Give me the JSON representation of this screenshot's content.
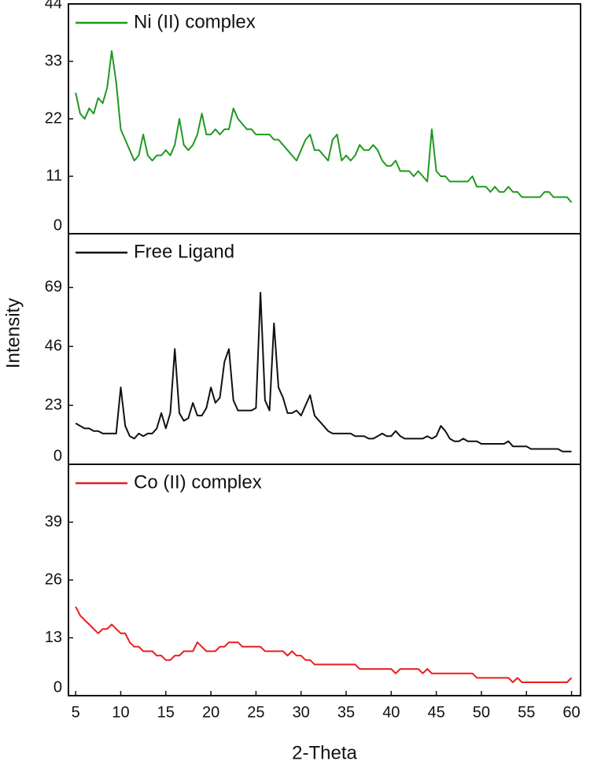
{
  "chart_data": [
    {
      "type": "line",
      "xlim": [
        4.2,
        61
      ],
      "ylim": [
        0,
        44
      ],
      "yticks": [
        0,
        11,
        22,
        33,
        44
      ],
      "x": [
        5,
        5.5,
        6,
        6.5,
        7,
        7.5,
        8,
        8.5,
        9,
        9.5,
        10,
        10.5,
        11,
        11.5,
        12,
        12.5,
        13,
        13.5,
        14,
        14.5,
        15,
        15.5,
        16,
        16.5,
        17,
        17.5,
        18,
        18.5,
        19,
        19.5,
        20,
        20.5,
        21,
        21.5,
        22,
        22.5,
        23,
        23.5,
        24,
        24.5,
        25,
        25.5,
        26,
        26.5,
        27,
        27.5,
        28,
        28.5,
        29,
        29.5,
        30,
        30.5,
        31,
        31.5,
        32,
        32.5,
        33,
        33.5,
        34,
        34.5,
        35,
        35.5,
        36,
        36.5,
        37,
        37.5,
        38,
        38.5,
        39,
        39.5,
        40,
        40.5,
        41,
        41.5,
        42,
        42.5,
        43,
        43.5,
        44,
        44.5,
        45,
        45.5,
        46,
        46.5,
        47,
        47.5,
        48,
        48.5,
        49,
        49.5,
        50,
        50.5,
        51,
        51.5,
        52,
        52.5,
        53,
        53.5,
        54,
        54.5,
        55,
        55.5,
        56,
        56.5,
        57,
        57.5,
        58,
        58.5,
        59,
        59.5,
        60
      ],
      "series": [
        {
          "name": "Ni (II) complex",
          "color": "#1f9a1f",
          "values": [
            27,
            23,
            22,
            24,
            23,
            26,
            25,
            28,
            35,
            29,
            20,
            18,
            16,
            14,
            15,
            19,
            15,
            14,
            15,
            15,
            16,
            15,
            17,
            22,
            17,
            16,
            17,
            19,
            23,
            19,
            19,
            20,
            19,
            20,
            20,
            24,
            22,
            21,
            20,
            20,
            19,
            19,
            19,
            19,
            18,
            18,
            17,
            16,
            15,
            14,
            16,
            18,
            19,
            16,
            16,
            15,
            14,
            18,
            19,
            14,
            15,
            14,
            15,
            17,
            16,
            16,
            17,
            16,
            14,
            13,
            13,
            14,
            12,
            12,
            12,
            11,
            12,
            11,
            10,
            20,
            12,
            11,
            11,
            10,
            10,
            10,
            10,
            10,
            11,
            9,
            9,
            9,
            8,
            9,
            8,
            8,
            9,
            8,
            8,
            7,
            7,
            7,
            7,
            7,
            8,
            8,
            7,
            7,
            7,
            7,
            6
          ]
        }
      ]
    },
    {
      "type": "line",
      "xlim": [
        4.2,
        61
      ],
      "ylim": [
        0,
        90
      ],
      "yticks": [
        0,
        23,
        46,
        69
      ],
      "y_label": "Intensity",
      "x": [
        5,
        5.5,
        6,
        6.5,
        7,
        7.5,
        8,
        8.5,
        9,
        9.5,
        10,
        10.5,
        11,
        11.5,
        12,
        12.5,
        13,
        13.5,
        14,
        14.5,
        15,
        15.5,
        16,
        16.5,
        17,
        17.5,
        18,
        18.5,
        19,
        19.5,
        20,
        20.5,
        21,
        21.5,
        22,
        22.5,
        23,
        23.5,
        24,
        24.5,
        25,
        25.5,
        26,
        26.5,
        27,
        27.5,
        28,
        28.5,
        29,
        29.5,
        30,
        30.5,
        31,
        31.5,
        32,
        32.5,
        33,
        33.5,
        34,
        34.5,
        35,
        35.5,
        36,
        36.5,
        37,
        37.5,
        38,
        38.5,
        39,
        39.5,
        40,
        40.5,
        41,
        41.5,
        42,
        42.5,
        43,
        43.5,
        44,
        44.5,
        45,
        45.5,
        46,
        46.5,
        47,
        47.5,
        48,
        48.5,
        49,
        49.5,
        50,
        50.5,
        51,
        51.5,
        52,
        52.5,
        53,
        53.5,
        54,
        54.5,
        55,
        55.5,
        56,
        56.5,
        57,
        57.5,
        58,
        58.5,
        59,
        59.5,
        60
      ],
      "series": [
        {
          "name": "Free Ligand",
          "color": "#111111",
          "values": [
            16,
            15,
            14,
            14,
            13,
            13,
            12,
            12,
            12,
            12,
            30,
            15,
            11,
            10,
            12,
            11,
            12,
            12,
            14,
            20,
            14,
            20,
            45,
            20,
            17,
            18,
            24,
            19,
            19,
            22,
            30,
            24,
            26,
            40,
            45,
            25,
            21,
            21,
            21,
            21,
            22,
            67,
            25,
            21,
            55,
            30,
            26,
            20,
            20,
            21,
            19,
            23,
            27,
            19,
            17,
            15,
            13,
            12,
            12,
            12,
            12,
            12,
            11,
            11,
            11,
            10,
            10,
            11,
            12,
            11,
            11,
            13,
            11,
            10,
            10,
            10,
            10,
            10,
            11,
            10,
            11,
            15,
            13,
            10,
            9,
            9,
            10,
            9,
            9,
            9,
            8,
            8,
            8,
            8,
            8,
            8,
            9,
            7,
            7,
            7,
            7,
            6,
            6,
            6,
            6,
            6,
            6,
            6,
            5,
            5,
            5
          ]
        }
      ]
    },
    {
      "type": "line",
      "xlim": [
        4.2,
        61
      ],
      "ylim": [
        0,
        52
      ],
      "yticks": [
        0,
        13,
        26,
        39
      ],
      "xticks": [
        5,
        10,
        15,
        20,
        25,
        30,
        35,
        40,
        45,
        50,
        55,
        60
      ],
      "x_label": "2-Theta",
      "x": [
        5,
        5.5,
        6,
        6.5,
        7,
        7.5,
        8,
        8.5,
        9,
        9.5,
        10,
        10.5,
        11,
        11.5,
        12,
        12.5,
        13,
        13.5,
        14,
        14.5,
        15,
        15.5,
        16,
        16.5,
        17,
        17.5,
        18,
        18.5,
        19,
        19.5,
        20,
        20.5,
        21,
        21.5,
        22,
        22.5,
        23,
        23.5,
        24,
        24.5,
        25,
        25.5,
        26,
        26.5,
        27,
        27.5,
        28,
        28.5,
        29,
        29.5,
        30,
        30.5,
        31,
        31.5,
        32,
        32.5,
        33,
        33.5,
        34,
        34.5,
        35,
        35.5,
        36,
        36.5,
        37,
        37.5,
        38,
        38.5,
        39,
        39.5,
        40,
        40.5,
        41,
        41.5,
        42,
        42.5,
        43,
        43.5,
        44,
        44.5,
        45,
        45.5,
        46,
        46.5,
        47,
        47.5,
        48,
        48.5,
        49,
        49.5,
        50,
        50.5,
        51,
        51.5,
        52,
        52.5,
        53,
        53.5,
        54,
        54.5,
        55,
        55.5,
        56,
        56.5,
        57,
        57.5,
        58,
        58.5,
        59,
        59.5,
        60
      ],
      "series": [
        {
          "name": "Co (II) complex",
          "color": "#ee1c1c",
          "values": [
            20,
            18,
            17,
            16,
            15,
            14,
            15,
            15,
            16,
            15,
            14,
            14,
            12,
            11,
            11,
            10,
            10,
            10,
            9,
            9,
            8,
            8,
            9,
            9,
            10,
            10,
            10,
            12,
            11,
            10,
            10,
            10,
            11,
            11,
            12,
            12,
            12,
            11,
            11,
            11,
            11,
            11,
            10,
            10,
            10,
            10,
            10,
            9,
            10,
            9,
            9,
            8,
            8,
            7,
            7,
            7,
            7,
            7,
            7,
            7,
            7,
            7,
            7,
            6,
            6,
            6,
            6,
            6,
            6,
            6,
            6,
            5,
            6,
            6,
            6,
            6,
            6,
            5,
            6,
            5,
            5,
            5,
            5,
            5,
            5,
            5,
            5,
            5,
            5,
            4,
            4,
            4,
            4,
            4,
            4,
            4,
            4,
            3,
            4,
            3,
            3,
            3,
            3,
            3,
            3,
            3,
            3,
            3,
            3,
            3,
            4
          ]
        }
      ]
    }
  ]
}
